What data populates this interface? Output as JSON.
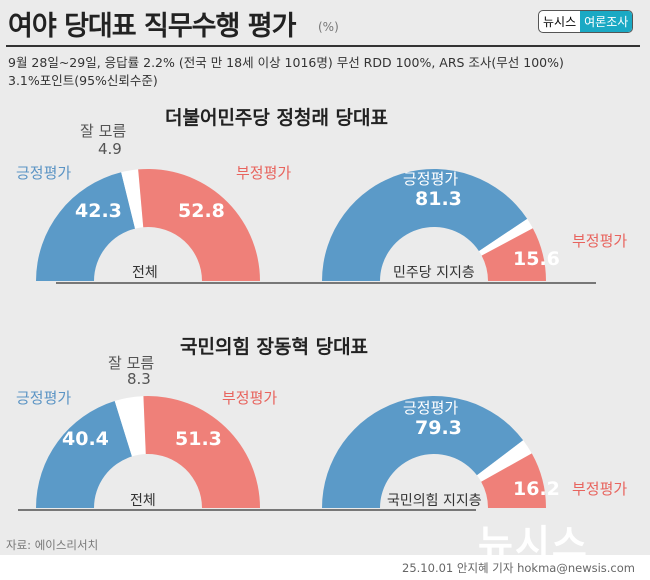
{
  "header": {
    "title": "여야 당대표 직무수행 평가",
    "unit": "(%)",
    "logo_left": "뉴시스",
    "logo_right": "여론조사",
    "subtitle_line1": "9월 28일~29일, 응답률 2.2% (전국 만 18세 이상 1016명) 무선 RDD 100%, ARS 조사(무선 100%)",
    "subtitle_line2": "3.1%포인트(95%신뢰수준)"
  },
  "colors": {
    "positive": "#5b9ac8",
    "negative": "#ef8079",
    "dont_know": "#ffffff",
    "background": "#ebebeb"
  },
  "chart_data": [
    {
      "type": "pie",
      "style": "half-donut",
      "title": "더불어민주당 정청래 당대표",
      "center_label": "전체",
      "categories": [
        "긍정평가",
        "잘 모름",
        "부정평가"
      ],
      "values": [
        42.3,
        4.9,
        52.8
      ]
    },
    {
      "type": "pie",
      "style": "half-donut",
      "title": "더불어민주당 정청래 당대표",
      "center_label": "민주당 지지층",
      "categories": [
        "긍정평가",
        "부정평가"
      ],
      "values": [
        81.3,
        15.6
      ]
    },
    {
      "type": "pie",
      "style": "half-donut",
      "title": "국민의힘 장동혁 당대표",
      "center_label": "전체",
      "categories": [
        "긍정평가",
        "잘 모름",
        "부정평가"
      ],
      "values": [
        40.4,
        8.3,
        51.3
      ]
    },
    {
      "type": "pie",
      "style": "half-donut",
      "title": "국민의힘 장동혁 당대표",
      "center_label": "국민의힘 지지층",
      "categories": [
        "긍정평가",
        "부정평가"
      ],
      "values": [
        79.3,
        16.2
      ]
    }
  ],
  "footer": {
    "source": "자료: 에이스리서치",
    "credit": "25.10.01 안지혜 기자 hokma@newsis.com",
    "watermark": "뉴시스"
  }
}
